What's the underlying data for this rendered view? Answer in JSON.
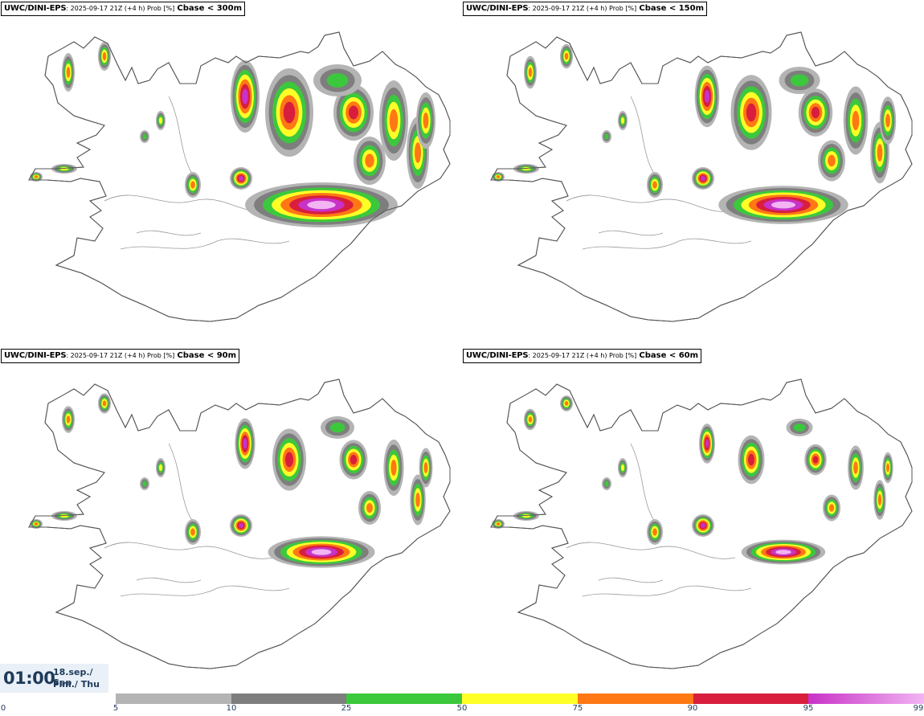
{
  "panels": [
    {
      "model": "UWC/DINI-EPS",
      "meta": ": 2025-09-17 21Z (+4 h) Prob [%]",
      "variable": "Cbase < 300m",
      "level": 4
    },
    {
      "model": "UWC/DINI-EPS",
      "meta": ": 2025-09-17 21Z (+4 h) Prob [%]",
      "variable": "Cbase < 150m",
      "level": 3
    },
    {
      "model": "UWC/DINI-EPS",
      "meta": ": 2025-09-17 21Z (+4 h) Prob [%]",
      "variable": "Cbase < 90m",
      "level": 2
    },
    {
      "model": "UWC/DINI-EPS",
      "meta": ": 2025-09-17 21Z (+4 h) Prob [%]",
      "variable": "Cbase < 60m",
      "level": 1
    }
  ],
  "valid_time": {
    "time": "01:00",
    "date": "18.sep./ Sep",
    "day": "Fim./ Thu"
  },
  "legend": {
    "ticks": [
      "0",
      "5",
      "10",
      "25",
      "50",
      "75",
      "90",
      "95",
      "99"
    ],
    "bins": [
      {
        "from": "5",
        "to": "10",
        "color": "#b4b4b4"
      },
      {
        "from": "10",
        "to": "25",
        "color": "#7e7e7e"
      },
      {
        "from": "25",
        "to": "50",
        "color": "#3cc83c"
      },
      {
        "from": "50",
        "to": "75",
        "color": "#ffff28"
      },
      {
        "from": "75",
        "to": "90",
        "color": "#ff7814"
      },
      {
        "from": "90",
        "to": "95",
        "color": "#d81e3c"
      },
      {
        "from": "95",
        "to": "99",
        "color": "#c832c8",
        "color_end": "#f2b4f2"
      }
    ]
  }
}
